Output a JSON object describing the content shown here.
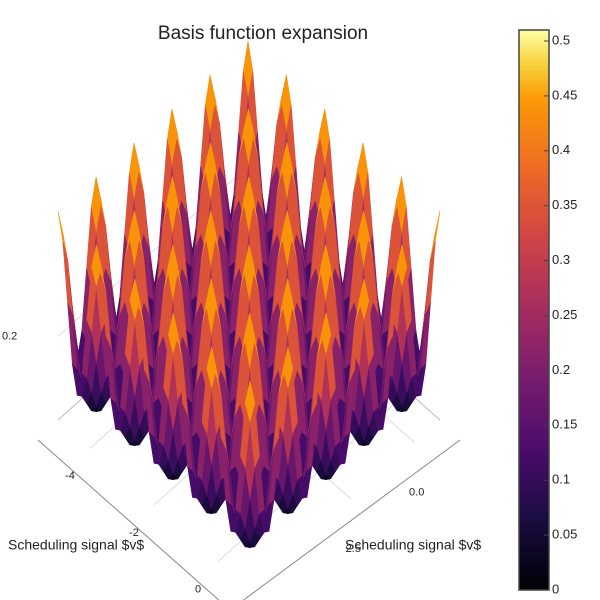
{
  "chart_data": {
    "type": "surface",
    "title": "Basis function expansion",
    "x_label": "Scheduling signal $v$",
    "y_label": "Scheduling signal $v$",
    "x": [
      -5,
      -4.4,
      -3.8,
      -3.2,
      -2.6,
      -2,
      -1.4,
      -0.8,
      -0.2,
      0.4,
      1
    ],
    "y": [
      -1,
      -0.25,
      0.5,
      1.25,
      2,
      2.75,
      3.5,
      4.25,
      5,
      5.75,
      6.5
    ],
    "z": [
      [
        0.5,
        0.1,
        0.5,
        0.1,
        0.5,
        0.1,
        0.5,
        0.1,
        0.5,
        0.1,
        0.5
      ],
      [
        0.1,
        0.02,
        0.1,
        0.02,
        0.1,
        0.02,
        0.1,
        0.02,
        0.1,
        0.02,
        0.1
      ],
      [
        0.5,
        0.1,
        0.5,
        0.1,
        0.5,
        0.1,
        0.5,
        0.1,
        0.5,
        0.1,
        0.5
      ],
      [
        0.1,
        0.02,
        0.1,
        0.02,
        0.1,
        0.02,
        0.1,
        0.02,
        0.1,
        0.02,
        0.1
      ],
      [
        0.5,
        0.1,
        0.5,
        0.1,
        0.5,
        0.1,
        0.5,
        0.1,
        0.5,
        0.1,
        0.5
      ],
      [
        0.1,
        0.02,
        0.1,
        0.02,
        0.1,
        0.02,
        0.1,
        0.02,
        0.1,
        0.02,
        0.1
      ],
      [
        0.5,
        0.1,
        0.5,
        0.1,
        0.5,
        0.1,
        0.5,
        0.1,
        0.5,
        0.1,
        0.5
      ],
      [
        0.1,
        0.02,
        0.1,
        0.02,
        0.1,
        0.02,
        0.1,
        0.02,
        0.1,
        0.02,
        0.1
      ],
      [
        0.5,
        0.1,
        0.5,
        0.1,
        0.5,
        0.1,
        0.5,
        0.1,
        0.5,
        0.1,
        0.5
      ],
      [
        0.1,
        0.02,
        0.1,
        0.02,
        0.1,
        0.02,
        0.1,
        0.02,
        0.1,
        0.02,
        0.1
      ],
      [
        0.5,
        0.1,
        0.5,
        0.1,
        0.5,
        0.1,
        0.5,
        0.1,
        0.5,
        0.1,
        0.5
      ]
    ],
    "xlim": [
      -5,
      1
    ],
    "xticks": [
      -4,
      -2,
      0
    ],
    "ylim": [
      -1,
      6.5
    ],
    "yticks": [
      {
        "value": 0,
        "label": "0.0"
      },
      2.5
    ],
    "zlim": [
      0,
      0.55
    ],
    "zticks": [
      0.2
    ],
    "clim": [
      0,
      0.51
    ],
    "cticks": [
      0,
      0.05,
      0.1,
      0.15,
      0.2,
      0.25,
      0.3,
      0.35,
      0.4,
      0.45,
      0.5
    ],
    "colormap": "inferno"
  }
}
